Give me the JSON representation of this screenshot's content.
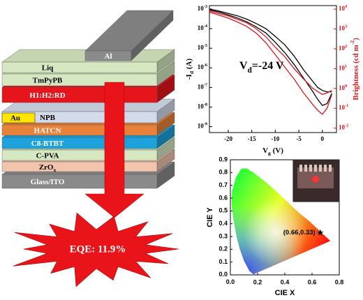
{
  "diagram": {
    "layers": [
      {
        "label": "Glass/ITO",
        "color": "#8a8a8a"
      },
      {
        "label": "ZrO",
        "sub": "x",
        "color": "#f0c4ad"
      },
      {
        "label": "C-PVA",
        "color": "#d6e8c2"
      },
      {
        "label": "C8-BTBT",
        "color": "#1ea2dc"
      },
      {
        "label": "HATCN",
        "color": "#e8823a"
      },
      {
        "label": "NPB",
        "color": "#d3dbea"
      },
      {
        "label": "H1:H2:RD",
        "color": "#e5151b"
      },
      {
        "label": "TmPyPB",
        "color": "#d6e8c2"
      },
      {
        "label": "Liq",
        "color": "#d6e8c2"
      },
      {
        "label": "Al",
        "color": "#8a8a8a"
      }
    ],
    "electrode": {
      "label": "Au",
      "color": "#ffe600"
    },
    "burst_label": "EQE: 11.9%"
  },
  "chart_data": [
    {
      "type": "line",
      "log_y": true,
      "annotation": {
        "text": "V",
        "sub": "d",
        "rest": "=-24 V"
      },
      "x_label": {
        "text": "V",
        "sub": "g",
        "rest": " (V)"
      },
      "y_label": {
        "text": "-I",
        "sub": "d",
        "rest": " (A)"
      },
      "y2_label": {
        "text": "Brightness (cd m",
        "sup": "-2",
        "rest": ")"
      },
      "y2_color": "#e0141a",
      "x": [
        -24,
        -22,
        -20,
        -18,
        -16,
        -14,
        -12,
        -10,
        -8,
        -6,
        -4,
        -2,
        -1,
        0,
        1,
        2
      ],
      "series": [
        {
          "color": "#000000",
          "values": [
            0.001,
            0.0008,
            0.0006,
            0.00045,
            0.0003,
            0.00018,
            0.0001,
            4e-05,
            1.5e-05,
            4e-06,
            8e-07,
            2e-07,
            1e-07,
            7e-08,
            6e-08,
            6e-08
          ]
        },
        {
          "color": "#000000",
          "values": [
            0.0009,
            0.0007,
            0.0005,
            0.00035,
            0.00022,
            0.00012,
            6e-05,
            2e-05,
            6e-06,
            1.5e-06,
            3e-07,
            6e-08,
            2.5e-08,
            1.2e-08,
            1.5e-08,
            5e-08
          ]
        },
        {
          "color": "#e0141a",
          "axis": "y2",
          "values": [
            8000,
            6000,
            4500,
            3000,
            2000,
            1000,
            400,
            120,
            40,
            10,
            3,
            1,
            0.7,
            0.5,
            0.6,
            0.8
          ]
        },
        {
          "color": "#e0141a",
          "axis": "y2",
          "values": [
            7000,
            5000,
            3500,
            2200,
            1300,
            600,
            200,
            50,
            12,
            3,
            0.6,
            0.15,
            0.08,
            0.05,
            0.1,
            0.5
          ]
        }
      ],
      "xlim": [
        -24,
        3
      ],
      "xticks": [
        -20,
        -15,
        -10,
        -5,
        0
      ],
      "ylim": [
        5e-10,
        0.0015
      ],
      "yticks": [
        {
          "value": 0.001,
          "label": "10",
          "exp": "-3"
        },
        {
          "value": 0.0001,
          "label": "10",
          "exp": "-4"
        },
        {
          "value": 1e-05,
          "label": "10",
          "exp": "-5"
        },
        {
          "value": 1e-06,
          "label": "10",
          "exp": "-6"
        },
        {
          "value": 1e-07,
          "label": "10",
          "exp": "-7"
        },
        {
          "value": 1e-08,
          "label": "10",
          "exp": "-8"
        },
        {
          "value": 1e-09,
          "label": "10",
          "exp": "-9"
        }
      ],
      "y2lim": [
        0.006,
        15000
      ],
      "y2ticks": [
        {
          "value": 10000,
          "label": "10",
          "exp": "4"
        },
        {
          "value": 1000,
          "label": "10",
          "exp": "3"
        },
        {
          "value": 100,
          "label": "10",
          "exp": "2"
        },
        {
          "value": 10,
          "label": "10",
          "exp": "1"
        },
        {
          "value": 1,
          "label": "10",
          "exp": "0"
        },
        {
          "value": 0.1,
          "label": "10",
          "exp": "-1"
        },
        {
          "value": 0.01,
          "label": "10",
          "exp": "-2"
        }
      ]
    },
    {
      "type": "scatter",
      "x_label": "CIE X",
      "y_label": "CIE Y",
      "x": [
        0.66
      ],
      "values": [
        0.33
      ],
      "point_label": "(0.66,0.33)",
      "color": "#000000",
      "xlim": [
        0,
        0.8
      ],
      "xticks": [
        {
          "value": 0,
          "label": "0.0"
        },
        0.2,
        0.4,
        0.6,
        0.8
      ],
      "ylim": [
        0,
        0.9
      ],
      "yticks": [
        {
          "value": 0,
          "label": "0.0"
        },
        0.1,
        0.2,
        0.3,
        0.4,
        0.5,
        0.6,
        0.7,
        0.8,
        0.9
      ]
    }
  ]
}
